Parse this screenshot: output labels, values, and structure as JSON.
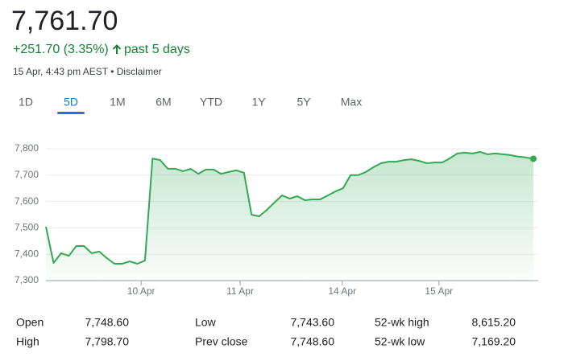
{
  "header": {
    "price": "7,761.70",
    "change": "+251.70 (3.35%)",
    "period": "past 5 days",
    "timestamp": "15 Apr, 4:43 pm AEST",
    "separator": "•",
    "disclaimer": "Disclaimer"
  },
  "tabs": [
    "1D",
    "5D",
    "1M",
    "6M",
    "YTD",
    "1Y",
    "5Y",
    "Max"
  ],
  "active_tab": 1,
  "chart_data": {
    "type": "area",
    "x": [
      0,
      1,
      2,
      3,
      4,
      5,
      6,
      7,
      8,
      9,
      10,
      11,
      12,
      13,
      14,
      15,
      16,
      17,
      18,
      19,
      20,
      21,
      22,
      23,
      24,
      25,
      26,
      27,
      28,
      29,
      30,
      31,
      32,
      33,
      34,
      35,
      36,
      37,
      38,
      39,
      40,
      41,
      42,
      43,
      44,
      45,
      46,
      47,
      48,
      49,
      50,
      51,
      52,
      53,
      54,
      55,
      56,
      57,
      58,
      59,
      60,
      61,
      62,
      63,
      64
    ],
    "series": [
      {
        "color": "#34a853",
        "values": [
          7504,
          7367,
          7404,
          7394,
          7431,
          7431,
          7404,
          7410,
          7385,
          7364,
          7364,
          7373,
          7364,
          7376,
          7763,
          7757,
          7724,
          7724,
          7715,
          7724,
          7705,
          7721,
          7721,
          7705,
          7712,
          7718,
          7709,
          7550,
          7544,
          7568,
          7596,
          7623,
          7611,
          7620,
          7605,
          7608,
          7608,
          7623,
          7638,
          7650,
          7700,
          7700,
          7712,
          7730,
          7745,
          7751,
          7751,
          7757,
          7760,
          7754,
          7745,
          7748,
          7748,
          7763,
          7782,
          7785,
          7782,
          7788,
          7779,
          7782,
          7779,
          7776,
          7770,
          7767,
          7762
        ]
      }
    ],
    "xlim": [
      0,
      64
    ],
    "xticks": [
      {
        "value": 12.5,
        "label": "10 Apr"
      },
      {
        "value": 25.5,
        "label": "11 Apr"
      },
      {
        "value": 38.9,
        "label": "14 Apr"
      },
      {
        "value": 51.6,
        "label": "15 Apr"
      }
    ],
    "ylim": [
      7300,
      7800
    ],
    "yticks": [
      {
        "value": 7300,
        "label": "7,300"
      },
      {
        "value": 7400,
        "label": "7,400"
      },
      {
        "value": 7500,
        "label": "7,500"
      },
      {
        "value": 7600,
        "label": "7,600"
      },
      {
        "value": 7700,
        "label": "7,700"
      },
      {
        "value": 7800,
        "label": "7,800"
      }
    ],
    "grid": true
  },
  "stats": {
    "rows": [
      [
        "Open",
        "7,748.60",
        "Low",
        "7,743.60",
        "52-wk high",
        "8,615.20"
      ],
      [
        "High",
        "7,798.70",
        "Prev close",
        "7,748.60",
        "52-wk low",
        "7,169.20"
      ]
    ]
  }
}
